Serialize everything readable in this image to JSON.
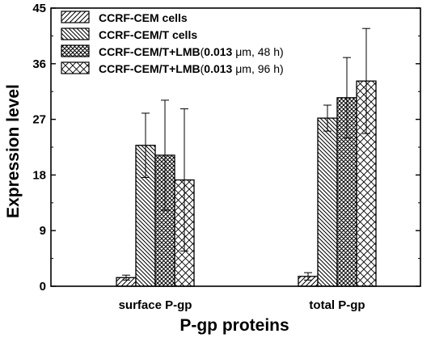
{
  "chart_data": {
    "type": "bar",
    "xlabel": "P-gp proteins",
    "ylabel": "Expression level",
    "ylim": [
      0,
      45
    ],
    "yticks": [
      0,
      9,
      18,
      27,
      36,
      45
    ],
    "categories": [
      "surface P-gp",
      "total P-gp"
    ],
    "series": [
      {
        "name": "CCRF-CEM cells",
        "legend_parts": [
          [
            "CCRF-CEM cells",
            true
          ]
        ],
        "pattern": "diag-fwd",
        "values": [
          1.4,
          1.6
        ],
        "errors": [
          0.4,
          0.6
        ]
      },
      {
        "name": "CCRF-CEM/T cells",
        "legend_parts": [
          [
            "CCRF-CEM/T cells",
            true
          ]
        ],
        "pattern": "diag-back",
        "values": [
          22.8,
          27.2
        ],
        "errors": [
          5.2,
          2.1
        ]
      },
      {
        "name": "CCRF-CEM/T+LMB(0.013 μm, 48 h)",
        "legend_parts": [
          [
            "CCRF-CEM/T+LMB",
            true
          ],
          [
            "(",
            false
          ],
          [
            "0.013",
            true
          ],
          [
            " μm, 48 h)",
            false
          ]
        ],
        "pattern": "crosshatch",
        "values": [
          21.2,
          30.5
        ],
        "errors": [
          8.9,
          6.5
        ]
      },
      {
        "name": "CCRF-CEM/T+LMB(0.013 μm, 96 h)",
        "legend_parts": [
          [
            "CCRF-CEM/T+LMB",
            true
          ],
          [
            "(",
            false
          ],
          [
            "0.013",
            true
          ],
          [
            " μm, 96 h)",
            false
          ]
        ],
        "pattern": "diamond",
        "values": [
          17.2,
          33.2
        ],
        "errors": [
          11.5,
          8.5
        ]
      }
    ],
    "legend_position": "top-left",
    "grid": false
  }
}
